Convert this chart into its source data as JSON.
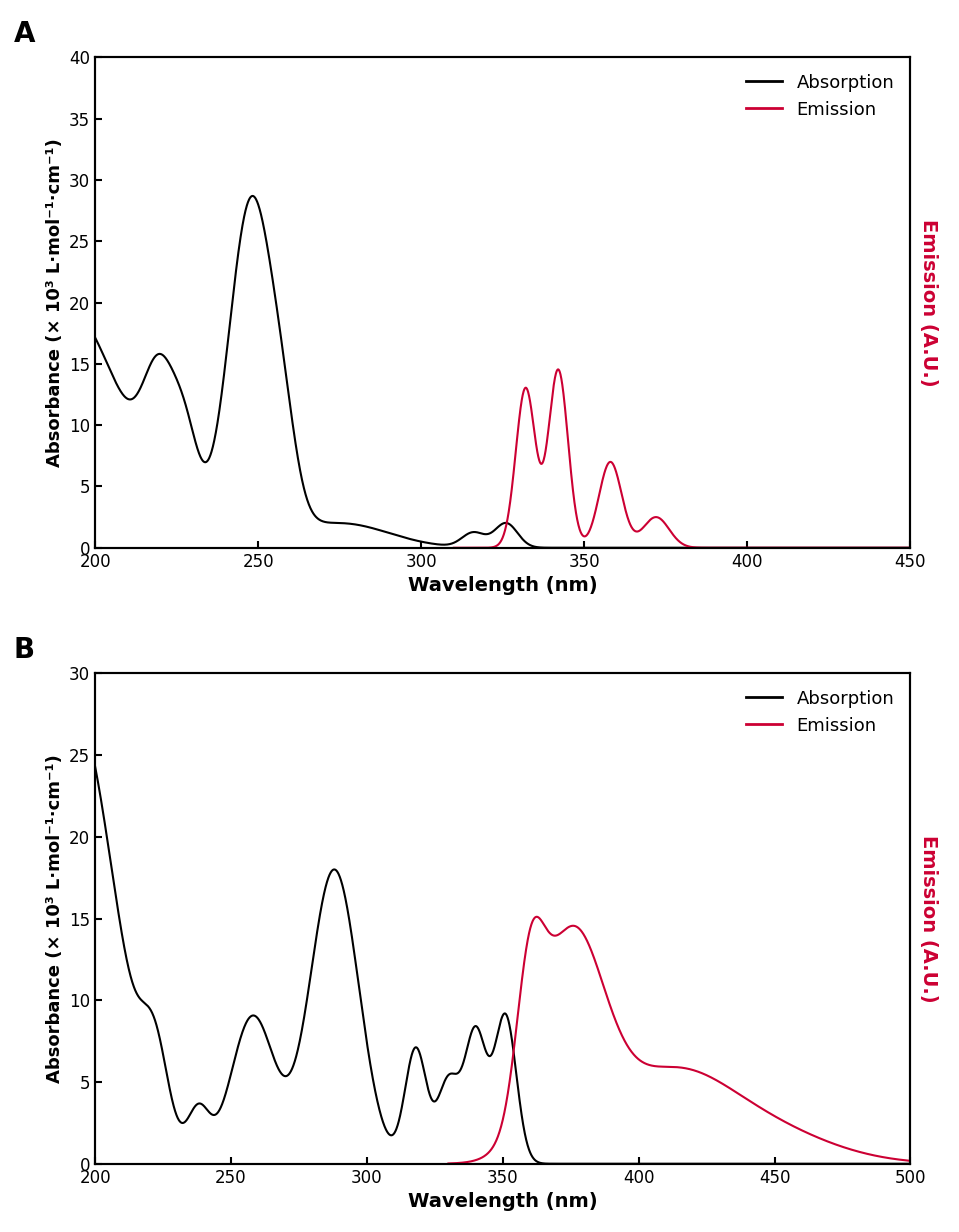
{
  "panel_A": {
    "abs_color": "#000000",
    "em_color": "#cc0033",
    "xlim": [
      200,
      450
    ],
    "ylim_abs": [
      0,
      40
    ],
    "ylim_em": [
      0,
      40
    ],
    "xlabel": "Wavelength (nm)",
    "ylabel_left": "Absorbance (× 10³ L·mol⁻¹·cm⁻¹)",
    "ylabel_right": "Emission (A.U.)",
    "label": "A",
    "xticks": [
      200,
      250,
      300,
      350,
      400,
      450
    ],
    "yticks_abs": [
      0,
      5,
      10,
      15,
      20,
      25,
      30,
      35,
      40
    ]
  },
  "panel_B": {
    "abs_color": "#000000",
    "em_color": "#cc0033",
    "xlim": [
      200,
      500
    ],
    "ylim_abs": [
      0,
      30
    ],
    "ylim_em": [
      0,
      30
    ],
    "xlabel": "Wavelength (nm)",
    "ylabel_left": "Absorbance (× 10³ L·mol⁻¹·cm⁻¹)",
    "ylabel_right": "Emission (A.U.)",
    "label": "B",
    "xticks": [
      200,
      250,
      300,
      350,
      400,
      450,
      500
    ],
    "yticks_abs": [
      0,
      5,
      10,
      15,
      20,
      25,
      30
    ]
  }
}
